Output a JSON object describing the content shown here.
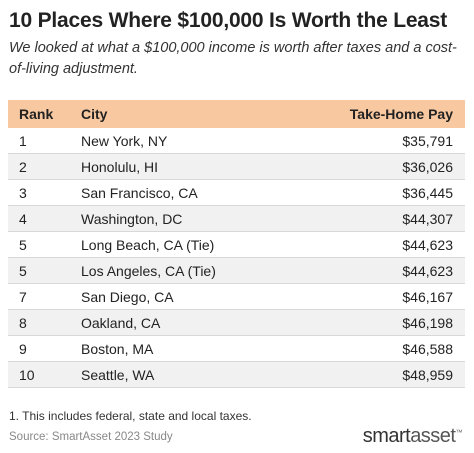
{
  "header": {
    "title": "10 Places Where $100,000 Is Worth the Least",
    "subtitle": "We looked at what a $100,000 income is worth after taxes and a cost-of-living adjustment."
  },
  "table": {
    "columns": [
      "Rank",
      "City",
      "Take-Home Pay"
    ],
    "rows": [
      [
        "1",
        "New York, NY",
        "$35,791"
      ],
      [
        "2",
        "Honolulu, HI",
        "$36,026"
      ],
      [
        "3",
        "San Francisco, CA",
        "$36,445"
      ],
      [
        "4",
        "Washington, DC",
        "$44,307"
      ],
      [
        "5",
        "Long Beach, CA (Tie)",
        "$44,623"
      ],
      [
        "5",
        "Los Angeles, CA (Tie)",
        "$44,623"
      ],
      [
        "7",
        "San Diego, CA",
        "$46,167"
      ],
      [
        "8",
        "Oakland, CA",
        "$46,198"
      ],
      [
        "9",
        "Boston, MA",
        "$46,588"
      ],
      [
        "10",
        "Seattle, WA",
        "$48,959"
      ]
    ]
  },
  "footnote": "1. This includes federal, state and local taxes.",
  "source": "Source: SmartAsset 2023 Study",
  "logo": {
    "main": "smart",
    "accent": "asset",
    "mark": "™"
  }
}
